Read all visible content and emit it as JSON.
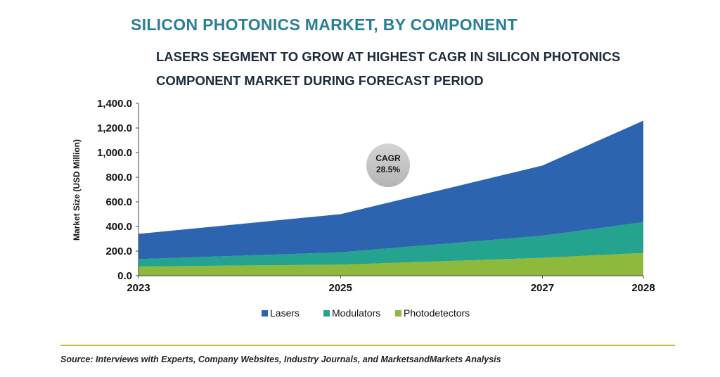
{
  "chart_data": {
    "type": "area",
    "stacked": true,
    "title": "SILICON PHOTONICS MARKET, BY COMPONENT",
    "subtitle": [
      "LASERS SEGMENT TO GROW AT HIGHEST CAGR IN SILICON PHOTONICS",
      "COMPONENT MARKET DURING FORECAST PERIOD"
    ],
    "x": [
      2023,
      2025,
      2027,
      2028
    ],
    "xlabels": [
      "2023",
      "2025",
      "2027",
      "2028"
    ],
    "ylabel": "Market Size (USD Million)",
    "ylim": [
      0,
      1400
    ],
    "yticks": [
      "0.0",
      "200.0",
      "400.0",
      "600.0",
      "800.0",
      "1,000.0",
      "1,200.0",
      "1,400.0"
    ],
    "grid": false,
    "legend_position": "bottom",
    "series": [
      {
        "name": "Photodetectors",
        "color": "#8dba3d",
        "values": [
          75,
          90,
          145,
          185
        ]
      },
      {
        "name": "Modulators",
        "color": "#24a38e",
        "values": [
          60,
          100,
          180,
          250
        ]
      },
      {
        "name": "Lasers",
        "color": "#2d64b0",
        "values": [
          205,
          310,
          570,
          825
        ]
      }
    ],
    "annotation": {
      "lines": [
        "CAGR",
        "28.5%"
      ],
      "trend_arrow": true
    }
  },
  "legend": [
    {
      "label": "Lasers",
      "color": "#2d64b0"
    },
    {
      "label": "Modulators",
      "color": "#24a38e"
    },
    {
      "label": "Photodetectors",
      "color": "#8dba3d"
    }
  ],
  "source": "Source: Interviews with Experts, Company Websites, Industry Journals, and MarketsandMarkets Analysis"
}
